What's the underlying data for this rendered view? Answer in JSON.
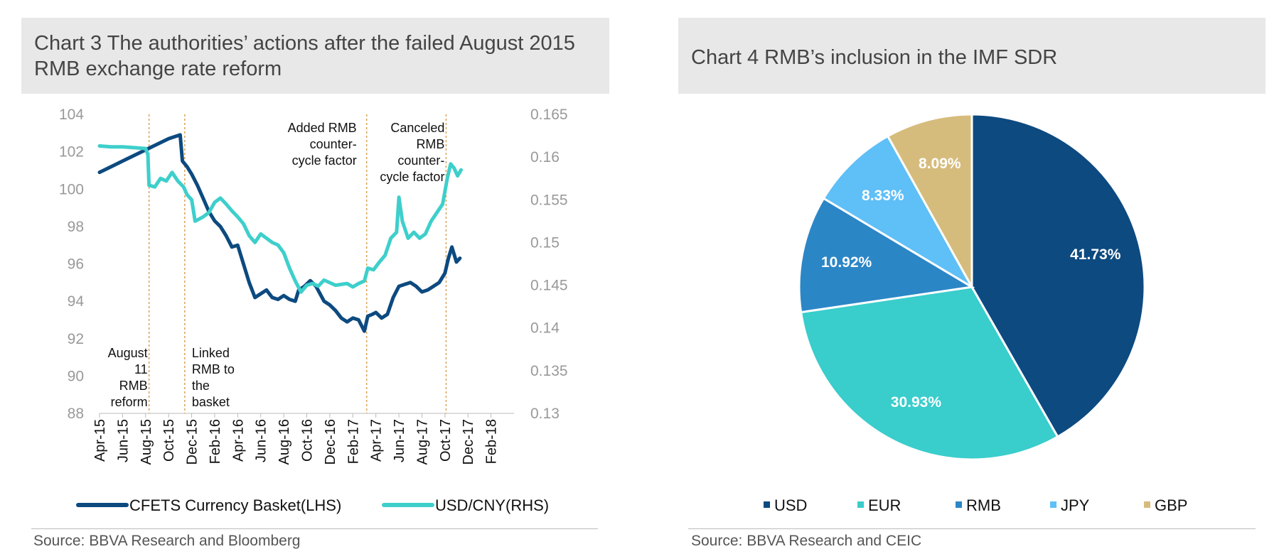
{
  "chart3": {
    "title": "Chart 3 The authorities’ actions after the failed August 2015 RMB exchange rate reform",
    "source": "Source: BBVA Research and Bloomberg"
  },
  "chart4": {
    "title": "Chart 4 RMB’s inclusion in the IMF SDR",
    "source": "Source: BBVA Research and CEIC"
  },
  "chart_data": [
    {
      "type": "line",
      "title": "Chart 3 The authorities’ actions after the failed August 2015 RMB exchange rate reform",
      "ylim_left": [
        88,
        104
      ],
      "left_ticks": [
        "104",
        "102",
        "100",
        "98",
        "96",
        "94",
        "92",
        "90",
        "88"
      ],
      "ylim_right": [
        0.13,
        0.165
      ],
      "right_ticks": [
        "0.165",
        "0.16",
        "0.155",
        "0.15",
        "0.145",
        "0.14",
        "0.135",
        "0.13"
      ],
      "x_ticks": [
        "Apr-15",
        "Jun-15",
        "Aug-15",
        "Oct-15",
        "Dec-15",
        "Feb-16",
        "Apr-16",
        "Jun-16",
        "Aug-16",
        "Oct-16",
        "Dec-16",
        "Feb-17",
        "Apr-17",
        "Jun-17",
        "Aug-17",
        "Oct-17",
        "Dec-17",
        "Feb-18"
      ],
      "x_range_months": [
        0,
        36
      ],
      "series": [
        {
          "name": "CFETS Currency Basket(LHS)",
          "axis": "left",
          "color": "#0c4a80",
          "points": [
            [
              0,
              100.9
            ],
            [
              1,
              101.2
            ],
            [
              2,
              101.5
            ],
            [
              3,
              101.8
            ],
            [
              4,
              102.1
            ],
            [
              5,
              102.4
            ],
            [
              6,
              102.7
            ],
            [
              7,
              102.9
            ],
            [
              7.2,
              101.5
            ],
            [
              7.6,
              101.2
            ],
            [
              8,
              100.8
            ],
            [
              8.5,
              100.2
            ],
            [
              9,
              99.5
            ],
            [
              9.5,
              98.8
            ],
            [
              10,
              98.3
            ],
            [
              10.5,
              98.0
            ],
            [
              11,
              97.5
            ],
            [
              11.5,
              96.9
            ],
            [
              12,
              97.0
            ],
            [
              12.5,
              96.0
            ],
            [
              13,
              95.0
            ],
            [
              13.5,
              94.2
            ],
            [
              14,
              94.4
            ],
            [
              14.5,
              94.6
            ],
            [
              15,
              94.2
            ],
            [
              15.5,
              94.1
            ],
            [
              16,
              94.3
            ],
            [
              16.5,
              94.1
            ],
            [
              17,
              94.0
            ],
            [
              17.3,
              94.6
            ],
            [
              17.8,
              94.8
            ],
            [
              18.3,
              95.1
            ],
            [
              18.8,
              94.8
            ],
            [
              19.5,
              94.0
            ],
            [
              20,
              93.8
            ],
            [
              20.5,
              93.5
            ],
            [
              21,
              93.1
            ],
            [
              21.5,
              92.9
            ],
            [
              22,
              93.1
            ],
            [
              22.5,
              93.0
            ],
            [
              23,
              92.4
            ],
            [
              23.3,
              93.2
            ],
            [
              23.7,
              93.3
            ],
            [
              24,
              93.4
            ],
            [
              24.5,
              93.1
            ],
            [
              25,
              93.3
            ],
            [
              25.5,
              94.2
            ],
            [
              26,
              94.8
            ],
            [
              26.5,
              94.9
            ],
            [
              27,
              95.0
            ],
            [
              27.5,
              94.8
            ],
            [
              28,
              94.5
            ],
            [
              28.5,
              94.6
            ],
            [
              29,
              94.8
            ],
            [
              29.5,
              95.0
            ],
            [
              30,
              95.5
            ],
            [
              30.3,
              96.3
            ],
            [
              30.6,
              96.9
            ],
            [
              31,
              96.1
            ],
            [
              31.3,
              96.3
            ]
          ]
        },
        {
          "name": "USD/CNY(RHS)",
          "axis": "right",
          "color": "#3ecfcb",
          "points": [
            [
              0,
              0.1613
            ],
            [
              1,
              0.1612
            ],
            [
              2,
              0.1612
            ],
            [
              3,
              0.1611
            ],
            [
              4,
              0.161
            ],
            [
              4.2,
              0.1603
            ],
            [
              4.3,
              0.1567
            ],
            [
              4.8,
              0.1565
            ],
            [
              5.3,
              0.1575
            ],
            [
              5.8,
              0.1572
            ],
            [
              6.3,
              0.1582
            ],
            [
              6.8,
              0.1572
            ],
            [
              7.3,
              0.1565
            ],
            [
              7.6,
              0.1556
            ],
            [
              8,
              0.155
            ],
            [
              8.3,
              0.1525
            ],
            [
              9,
              0.153
            ],
            [
              9.5,
              0.1535
            ],
            [
              10,
              0.1547
            ],
            [
              10.5,
              0.1552
            ],
            [
              11,
              0.1545
            ],
            [
              11.5,
              0.1537
            ],
            [
              12,
              0.153
            ],
            [
              12.5,
              0.1522
            ],
            [
              13,
              0.1508
            ],
            [
              13.5,
              0.15
            ],
            [
              14,
              0.151
            ],
            [
              14.5,
              0.1505
            ],
            [
              15,
              0.15
            ],
            [
              15.5,
              0.1497
            ],
            [
              16,
              0.1488
            ],
            [
              16.5,
              0.147
            ],
            [
              17,
              0.1455
            ],
            [
              17.5,
              0.1442
            ],
            [
              18,
              0.145
            ],
            [
              18.5,
              0.1452
            ],
            [
              19,
              0.1449
            ],
            [
              19.5,
              0.1456
            ],
            [
              20,
              0.1453
            ],
            [
              20.5,
              0.145
            ],
            [
              21,
              0.1451
            ],
            [
              21.5,
              0.1452
            ],
            [
              22,
              0.1448
            ],
            [
              22.5,
              0.1452
            ],
            [
              23,
              0.1455
            ],
            [
              23.3,
              0.147
            ],
            [
              23.8,
              0.1468
            ],
            [
              24.3,
              0.1477
            ],
            [
              24.8,
              0.1485
            ],
            [
              25.3,
              0.1505
            ],
            [
              25.8,
              0.1512
            ],
            [
              26,
              0.1553
            ],
            [
              26.3,
              0.1525
            ],
            [
              26.8,
              0.1505
            ],
            [
              27.3,
              0.1512
            ],
            [
              27.8,
              0.1505
            ],
            [
              28.3,
              0.151
            ],
            [
              28.8,
              0.1525
            ],
            [
              29.3,
              0.1535
            ],
            [
              29.8,
              0.1545
            ],
            [
              30.2,
              0.1575
            ],
            [
              30.5,
              0.1592
            ],
            [
              30.8,
              0.1587
            ],
            [
              31.1,
              0.1578
            ],
            [
              31.4,
              0.1585
            ]
          ]
        }
      ],
      "event_lines": [
        4.3,
        7.4,
        23.2,
        30.1
      ],
      "annotations": [
        {
          "month": 4.3,
          "anchor": "end",
          "lines": [
            "August",
            "11",
            "RMB",
            "reform"
          ]
        },
        {
          "month": 7.4,
          "anchor": "start",
          "lines": [
            "Linked",
            "RMB to",
            "the",
            "basket"
          ]
        },
        {
          "month": 23.2,
          "anchor": "end",
          "lines": [
            "Added  RMB",
            "counter-",
            "cycle factor"
          ]
        },
        {
          "month": 30.1,
          "anchor": "end",
          "lines": [
            "Canceled",
            "RMB",
            "counter-",
            "cycle factor"
          ]
        }
      ],
      "legend_position": "bottom"
    },
    {
      "type": "pie",
      "title": "Chart 4 RMB’s inclusion in the IMF SDR",
      "slices": [
        {
          "name": "USD",
          "value": 41.73,
          "label": "41.73%",
          "color": "#0d4a80"
        },
        {
          "name": "EUR",
          "value": 30.93,
          "label": "30.93%",
          "color": "#39cdcc"
        },
        {
          "name": "RMB",
          "value": 10.92,
          "label": "10.92%",
          "color": "#2b86c6"
        },
        {
          "name": "JPY",
          "value": 8.33,
          "label": "8.33%",
          "color": "#5fbff7"
        },
        {
          "name": "GBP",
          "value": 8.09,
          "label": "8.09%",
          "color": "#d6bc7c"
        }
      ],
      "legend_position": "bottom"
    }
  ]
}
